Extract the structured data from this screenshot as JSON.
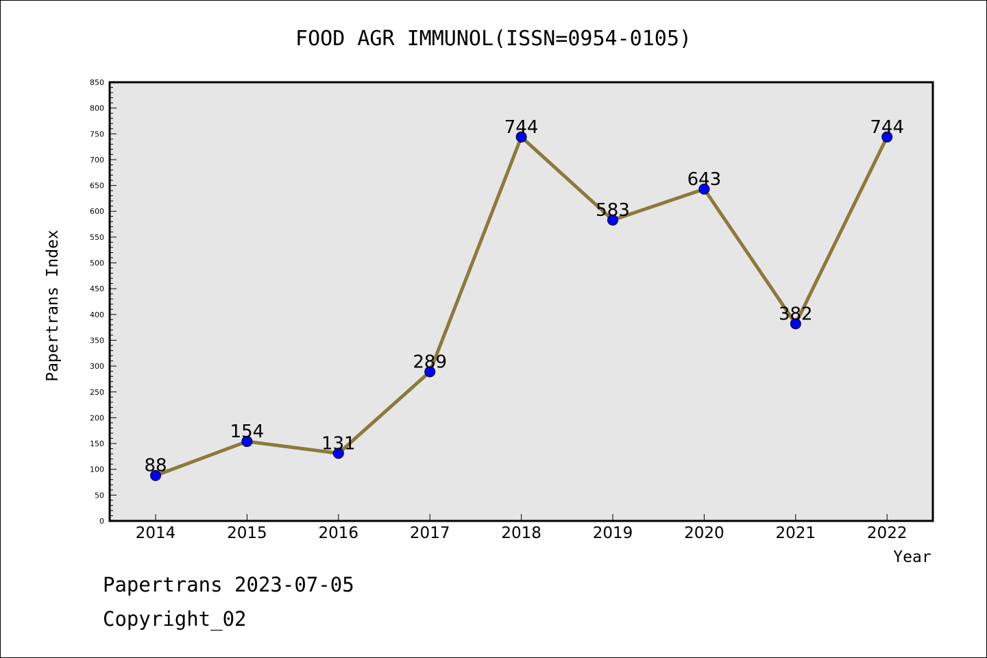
{
  "chart_data": {
    "type": "line",
    "title": "FOOD AGR IMMUNOL(ISSN=0954-0105)",
    "xlabel": "Year",
    "ylabel": "Papertrans Index",
    "categories": [
      "2014",
      "2015",
      "2016",
      "2017",
      "2018",
      "2019",
      "2020",
      "2021",
      "2022"
    ],
    "series": [
      {
        "values": [
          88,
          154,
          131,
          289,
          744,
          583,
          643,
          382,
          744
        ]
      }
    ],
    "ylim": [
      0,
      850
    ],
    "ytick_step": 50,
    "grid": false,
    "colors": {
      "line": "#8b7a3a",
      "marker": "#0000ff",
      "plot_bg": "#e6e6e6"
    }
  },
  "footer": {
    "date_line": "Papertrans 2023-07-05",
    "copyright": "Copyright_02"
  }
}
